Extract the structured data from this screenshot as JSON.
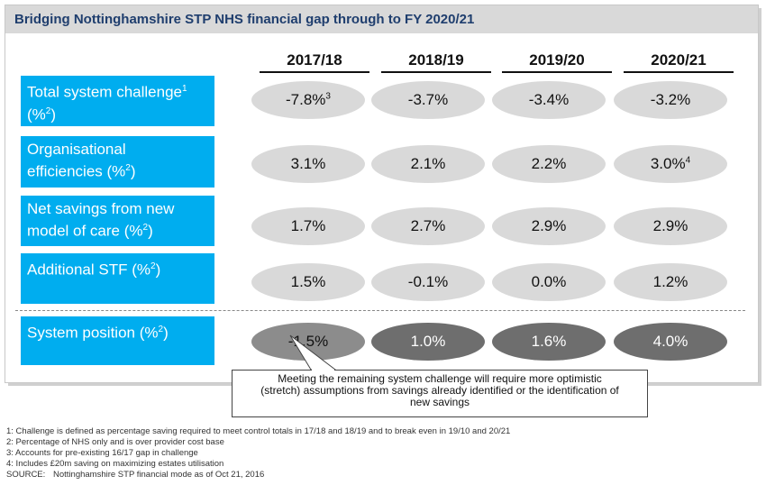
{
  "title": "Bridging Nottinghamshire STP NHS financial gap through to FY 2020/21",
  "columns": [
    "2017/18",
    "2018/19",
    "2019/20",
    "2020/21"
  ],
  "rows": [
    {
      "label_line1": "Total system challenge",
      "label_sup1": "1",
      "label_line2": "(%",
      "label_sup2": "2",
      "label_line2_end": ")",
      "values": [
        {
          "text": "-7.8%",
          "sup": "3"
        },
        {
          "text": "-3.7%",
          "sup": ""
        },
        {
          "text": "-3.4%",
          "sup": ""
        },
        {
          "text": "-3.2%",
          "sup": ""
        }
      ]
    },
    {
      "label_line1": "Organisational",
      "label_line2": "efficiencies (%",
      "label_sup2": "2",
      "label_line2_end": ")",
      "values": [
        {
          "text": "3.1%",
          "sup": ""
        },
        {
          "text": "2.1%",
          "sup": ""
        },
        {
          "text": "2.2%",
          "sup": ""
        },
        {
          "text": "3.0%",
          "sup": "4"
        }
      ]
    },
    {
      "label_line1": "Net savings from new",
      "label_line2": "model of care (%",
      "label_sup2": "2",
      "label_line2_end": ")",
      "values": [
        {
          "text": "1.7%",
          "sup": ""
        },
        {
          "text": "2.7%",
          "sup": ""
        },
        {
          "text": "2.9%",
          "sup": ""
        },
        {
          "text": "2.9%",
          "sup": ""
        }
      ]
    },
    {
      "label_line1": "Additional STF (%",
      "label_sup1": "2",
      "label_line1_end": ")",
      "values": [
        {
          "text": "1.5%",
          "sup": ""
        },
        {
          "text": "-0.1%",
          "sup": ""
        },
        {
          "text": "0.0%",
          "sup": ""
        },
        {
          "text": "1.2%",
          "sup": ""
        }
      ]
    },
    {
      "label_line1": "System position (%",
      "label_sup1": "2",
      "label_line1_end": ")",
      "values": [
        {
          "text": "-1.5%",
          "sup": ""
        },
        {
          "text": "1.0%",
          "sup": ""
        },
        {
          "text": "1.6%",
          "sup": ""
        },
        {
          "text": "4.0%",
          "sup": ""
        }
      ]
    }
  ],
  "callout": {
    "line1": "Meeting the remaining system challenge will  require more optimistic",
    "line2": "(stretch) assumptions from savings already identified or the identification of",
    "line3": "new savings"
  },
  "footnotes": [
    "1: Challenge is defined as percentage saving required to meet control totals in 17/18 and 18/19 and to break even in 19/10  and 20/21",
    "2: Percentage of NHS only and is over provider cost base",
    "3: Accounts for pre-existing 16/17 gap in challenge",
    "4: Includes £20m saving on maximizing estates utilisation"
  ],
  "source": {
    "label": "SOURCE:",
    "text": "Nottinghamshire STP financial mode as of Oct 21, 2016"
  },
  "colors": {
    "label_bg": "#00adef",
    "title_text": "#1f3e6e",
    "pill_light": "#d9d9d9",
    "pill_dark": "#6e6e6e"
  }
}
